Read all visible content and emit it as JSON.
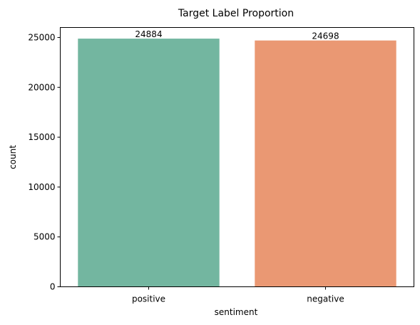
{
  "chart_data": {
    "type": "bar",
    "title": "Target Label Proportion",
    "xlabel": "sentiment",
    "ylabel": "count",
    "categories": [
      "positive",
      "negative"
    ],
    "values": [
      24884,
      24698
    ],
    "data_labels": [
      "24884",
      "24698"
    ],
    "colors": [
      "#73b6a0",
      "#ea9873"
    ],
    "ylim": [
      0,
      26000
    ],
    "yticks": [
      0,
      5000,
      10000,
      15000,
      20000,
      25000
    ],
    "grid": false,
    "legend": "none"
  }
}
